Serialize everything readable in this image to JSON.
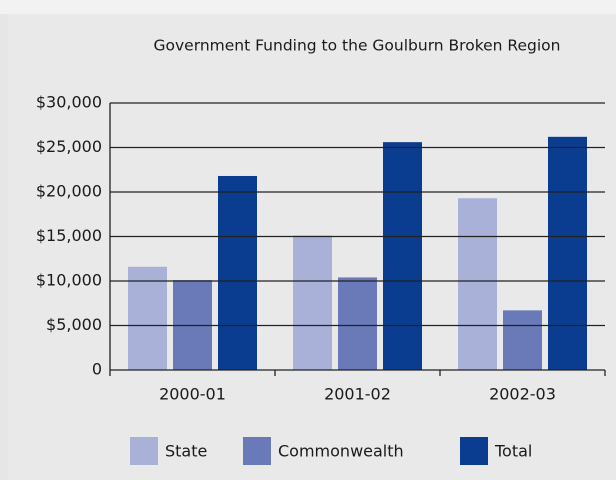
{
  "chart_data": {
    "type": "bar",
    "title": "Government Funding to the Goulburn Broken Region",
    "categories": [
      "2000-01",
      "2001-02",
      "2002-03"
    ],
    "series": [
      {
        "name": "State",
        "color": "#a9b1d9",
        "values": [
          11600,
          15100,
          19300
        ]
      },
      {
        "name": "Commonwealth",
        "color": "#6a79b8",
        "values": [
          10100,
          10400,
          6700
        ]
      },
      {
        "name": "Total",
        "color": "#0a3d8f",
        "values": [
          21800,
          25600,
          26200
        ]
      }
    ],
    "ylim": [
      0,
      30000
    ],
    "yticks": [
      0,
      {
        "value": 5000,
        "label": "$5,000"
      },
      {
        "value": 10000,
        "label": "$10,000"
      },
      {
        "value": 15000,
        "label": "$15,000"
      },
      {
        "value": 20000,
        "label": "$20,000"
      },
      {
        "value": 25000,
        "label": "$25,000"
      },
      {
        "value": 30000,
        "label": "$30,000"
      }
    ],
    "grid": true
  }
}
